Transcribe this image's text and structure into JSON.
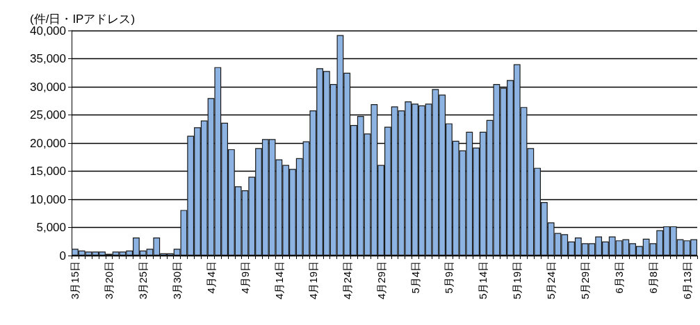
{
  "chart_data": {
    "type": "bar",
    "ylabel": "(件/日・IPアドレス)",
    "categories": [
      "3月15日",
      null,
      null,
      null,
      null,
      "3月20日",
      null,
      null,
      null,
      null,
      "3月25日",
      null,
      null,
      null,
      null,
      "3月30日",
      null,
      null,
      null,
      null,
      "4月4日",
      null,
      null,
      null,
      null,
      "4月9日",
      null,
      null,
      null,
      null,
      "4月14日",
      null,
      null,
      null,
      null,
      "4月19日",
      null,
      null,
      null,
      null,
      "4月24日",
      null,
      null,
      null,
      null,
      "4月29日",
      null,
      null,
      null,
      null,
      "5月4日",
      null,
      null,
      null,
      null,
      "5月9日",
      null,
      null,
      null,
      null,
      "5月14日",
      null,
      null,
      null,
      null,
      "5月19日",
      null,
      null,
      null,
      null,
      "5月24日",
      null,
      null,
      null,
      null,
      "5月29日",
      null,
      null,
      null,
      null,
      "6月3日",
      null,
      null,
      null,
      null,
      "6月8日",
      null,
      null,
      null,
      null,
      "6月13日",
      null
    ],
    "values": [
      1200,
      900,
      700,
      700,
      700,
      300,
      700,
      700,
      900,
      3200,
      900,
      1200,
      3200,
      400,
      400,
      1200,
      8100,
      21300,
      22800,
      24000,
      28000,
      33500,
      23600,
      18900,
      12300,
      11600,
      14000,
      19100,
      20700,
      20700,
      17100,
      16100,
      15400,
      17300,
      20300,
      25800,
      33300,
      32800,
      30500,
      39200,
      32500,
      23200,
      24800,
      21700,
      26900,
      16100,
      22900,
      26500,
      25800,
      27400,
      27000,
      26700,
      27000,
      29600,
      28600,
      23500,
      20400,
      18700,
      22000,
      19200,
      22000,
      24100,
      30500,
      29800,
      31200,
      34000,
      26400,
      19100,
      15600,
      9500,
      5900,
      4000,
      3800,
      2500,
      3200,
      2200,
      2200,
      3400,
      2500,
      3400,
      2700,
      2900,
      2200,
      1700,
      3000,
      2200,
      4500,
      5200,
      5200,
      2900,
      2700,
      2900
    ],
    "color": "#8db3e2",
    "ylim": [
      0,
      40000
    ],
    "yticks": [
      {
        "value": 0,
        "label": "0"
      },
      {
        "value": 5000,
        "label": "5,000"
      },
      {
        "value": 10000,
        "label": "10,000"
      },
      {
        "value": 15000,
        "label": "15,000"
      },
      {
        "value": 20000,
        "label": "20,000"
      },
      {
        "value": 25000,
        "label": "25,000"
      },
      {
        "value": 30000,
        "label": "30,000"
      },
      {
        "value": 35000,
        "label": "35,000"
      },
      {
        "value": 40000,
        "label": "40,000"
      }
    ],
    "grid": "y"
  }
}
